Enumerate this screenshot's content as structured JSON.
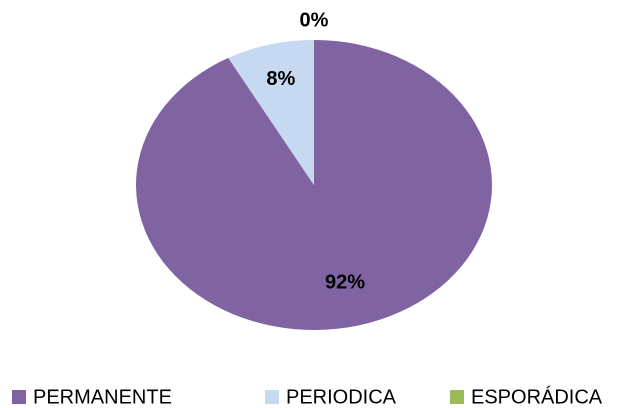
{
  "chart_data": {
    "type": "pie",
    "categories": [
      "PERMANENTE",
      "PERIODICA",
      "ESPORÁDICA"
    ],
    "values": [
      92,
      8,
      0
    ],
    "value_labels": [
      "92%",
      "8%",
      "0%"
    ],
    "colors": [
      "#8064a2",
      "#c6d9f1",
      "#9bbb59"
    ],
    "legend": "bottom"
  }
}
